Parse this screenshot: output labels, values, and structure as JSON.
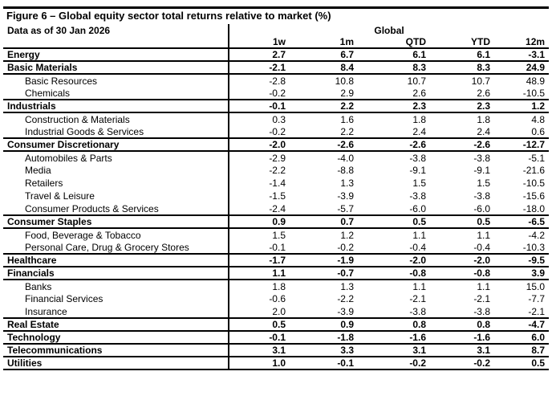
{
  "colors": {
    "text": "#000000",
    "background": "#ffffff",
    "rule": "#000000"
  },
  "chart_data": {
    "type": "table",
    "title": "Figure 6 – Global equity sector total returns relative to market (%)",
    "data_as_of": "Data as of 30 Jan 2026",
    "group_header": "Global",
    "columns": [
      "1w",
      "1m",
      "QTD",
      "YTD",
      "12m"
    ],
    "rows": [
      {
        "label": "Energy",
        "level": 0,
        "values": [
          "2.7",
          "6.7",
          "6.1",
          "6.1",
          "-3.1"
        ]
      },
      {
        "label": "Basic Materials",
        "level": 0,
        "values": [
          "-2.1",
          "8.4",
          "8.3",
          "8.3",
          "24.9"
        ]
      },
      {
        "label": "Basic Resources",
        "level": 1,
        "values": [
          "-2.8",
          "10.8",
          "10.7",
          "10.7",
          "48.9"
        ]
      },
      {
        "label": "Chemicals",
        "level": 1,
        "values": [
          "-0.2",
          "2.9",
          "2.6",
          "2.6",
          "-10.5"
        ]
      },
      {
        "label": "Industrials",
        "level": 0,
        "values": [
          "-0.1",
          "2.2",
          "2.3",
          "2.3",
          "1.2"
        ]
      },
      {
        "label": "Construction & Materials",
        "level": 1,
        "values": [
          "0.3",
          "1.6",
          "1.8",
          "1.8",
          "4.8"
        ]
      },
      {
        "label": "Industrial Goods & Services",
        "level": 1,
        "values": [
          "-0.2",
          "2.2",
          "2.4",
          "2.4",
          "0.6"
        ]
      },
      {
        "label": "Consumer Discretionary",
        "level": 0,
        "values": [
          "-2.0",
          "-2.6",
          "-2.6",
          "-2.6",
          "-12.7"
        ]
      },
      {
        "label": "Automobiles & Parts",
        "level": 1,
        "values": [
          "-2.9",
          "-4.0",
          "-3.8",
          "-3.8",
          "-5.1"
        ]
      },
      {
        "label": "Media",
        "level": 1,
        "values": [
          "-2.2",
          "-8.8",
          "-9.1",
          "-9.1",
          "-21.6"
        ]
      },
      {
        "label": "Retailers",
        "level": 1,
        "values": [
          "-1.4",
          "1.3",
          "1.5",
          "1.5",
          "-10.5"
        ]
      },
      {
        "label": "Travel & Leisure",
        "level": 1,
        "values": [
          "-1.5",
          "-3.9",
          "-3.8",
          "-3.8",
          "-15.6"
        ]
      },
      {
        "label": "Consumer Products & Services",
        "level": 1,
        "values": [
          "-2.4",
          "-5.7",
          "-6.0",
          "-6.0",
          "-18.0"
        ]
      },
      {
        "label": "Consumer Staples",
        "level": 0,
        "values": [
          "0.9",
          "0.7",
          "0.5",
          "0.5",
          "-6.5"
        ]
      },
      {
        "label": "Food, Beverage & Tobacco",
        "level": 1,
        "values": [
          "1.5",
          "1.2",
          "1.1",
          "1.1",
          "-4.2"
        ]
      },
      {
        "label": "Personal Care, Drug & Grocery Stores",
        "level": 1,
        "values": [
          "-0.1",
          "-0.2",
          "-0.4",
          "-0.4",
          "-10.3"
        ]
      },
      {
        "label": "Healthcare",
        "level": 0,
        "values": [
          "-1.7",
          "-1.9",
          "-2.0",
          "-2.0",
          "-9.5"
        ]
      },
      {
        "label": "Financials",
        "level": 0,
        "values": [
          "1.1",
          "-0.7",
          "-0.8",
          "-0.8",
          "3.9"
        ]
      },
      {
        "label": "Banks",
        "level": 1,
        "values": [
          "1.8",
          "1.3",
          "1.1",
          "1.1",
          "15.0"
        ]
      },
      {
        "label": "Financial Services",
        "level": 1,
        "values": [
          "-0.6",
          "-2.2",
          "-2.1",
          "-2.1",
          "-7.7"
        ]
      },
      {
        "label": "Insurance",
        "level": 1,
        "values": [
          "2.0",
          "-3.9",
          "-3.8",
          "-3.8",
          "-2.1"
        ]
      },
      {
        "label": "Real Estate",
        "level": 0,
        "values": [
          "0.5",
          "0.9",
          "0.8",
          "0.8",
          "-4.7"
        ]
      },
      {
        "label": "Technology",
        "level": 0,
        "values": [
          "-0.1",
          "-1.8",
          "-1.6",
          "-1.6",
          "6.0"
        ]
      },
      {
        "label": "Telecommunications",
        "level": 0,
        "values": [
          "3.1",
          "3.3",
          "3.1",
          "3.1",
          "8.7"
        ]
      },
      {
        "label": "Utilities",
        "level": 0,
        "values": [
          "1.0",
          "-0.1",
          "-0.2",
          "-0.2",
          "0.5"
        ]
      }
    ]
  }
}
